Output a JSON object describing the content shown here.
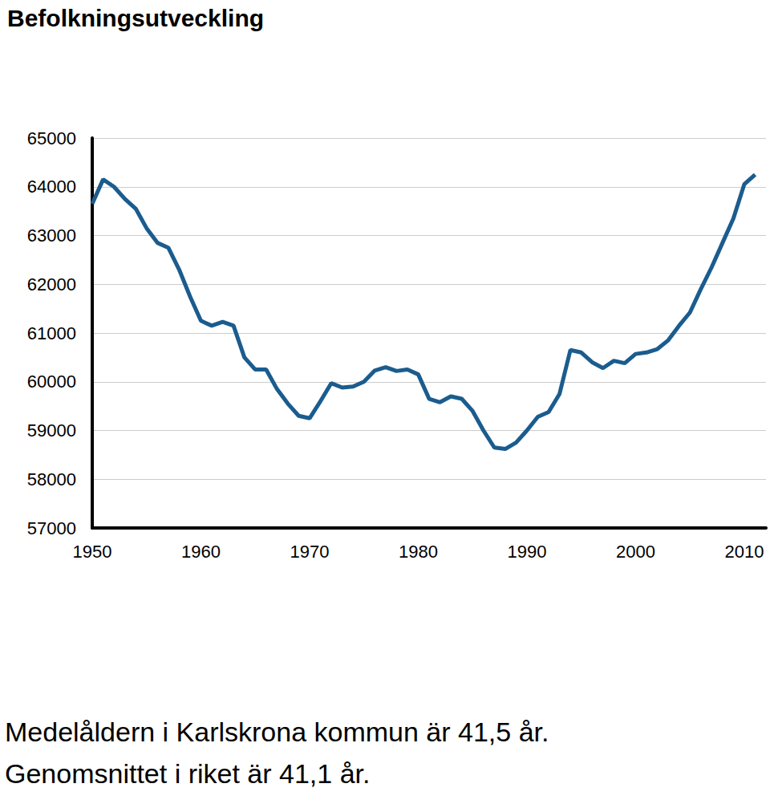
{
  "chart_data": {
    "type": "line",
    "title": "Befolkningsutveckling",
    "annotations": [
      "Medelåldern i Karlskrona kommun är 41,5 år.",
      "Genomsnittet i riket är 41,1 år."
    ],
    "x": [
      1950,
      1951,
      1952,
      1953,
      1954,
      1955,
      1956,
      1957,
      1958,
      1959,
      1960,
      1961,
      1962,
      1963,
      1964,
      1965,
      1966,
      1967,
      1968,
      1969,
      1970,
      1971,
      1972,
      1973,
      1974,
      1975,
      1976,
      1977,
      1978,
      1979,
      1980,
      1981,
      1982,
      1983,
      1984,
      1985,
      1986,
      1987,
      1988,
      1989,
      1990,
      1991,
      1992,
      1993,
      1994,
      1995,
      1996,
      1997,
      1998,
      1999,
      2000,
      2001,
      2002,
      2003,
      2004,
      2005,
      2006,
      2007,
      2008,
      2009,
      2010,
      2011
    ],
    "values": [
      63650,
      64150,
      64000,
      63750,
      63550,
      63150,
      62850,
      62750,
      62300,
      61750,
      61250,
      61150,
      61230,
      61150,
      60500,
      60250,
      60250,
      59850,
      59550,
      59300,
      59250,
      59600,
      59970,
      59880,
      59900,
      60000,
      60230,
      60300,
      60220,
      60250,
      60150,
      59650,
      59580,
      59700,
      59650,
      59400,
      59000,
      58650,
      58620,
      58750,
      59000,
      59280,
      59380,
      59750,
      60650,
      60600,
      60400,
      60280,
      60430,
      60380,
      60570,
      60600,
      60670,
      60850,
      61150,
      61420,
      61900,
      62350,
      62850,
      63350,
      64050,
      64250
    ],
    "color": "#1b5c8e",
    "xlim": [
      1950,
      2012
    ],
    "xticks": [
      1950,
      1960,
      1970,
      1980,
      1990,
      2000,
      2010
    ],
    "ylim": [
      57000,
      65000
    ],
    "yticks": [
      57000,
      58000,
      59000,
      60000,
      61000,
      62000,
      63000,
      64000,
      65000
    ],
    "grid": true
  }
}
